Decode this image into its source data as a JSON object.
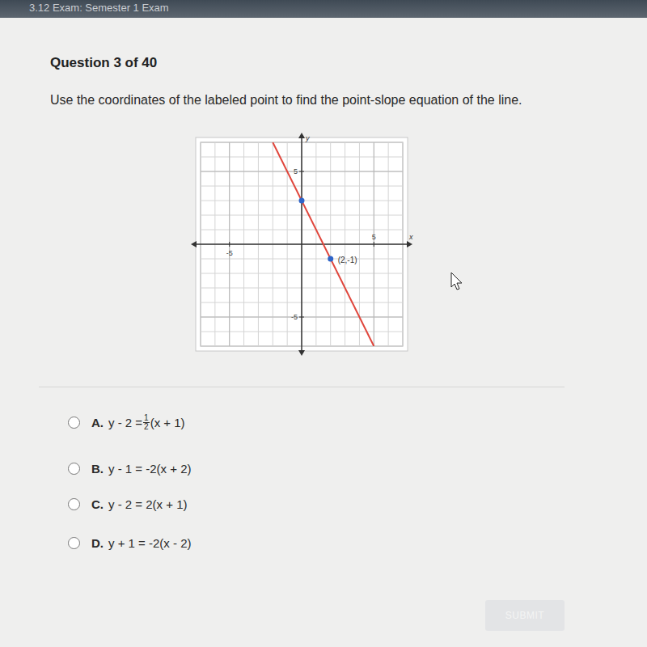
{
  "header": {
    "title": "3.12 Exam: Semester 1 Exam"
  },
  "question": {
    "title": "Question 3 of 40",
    "prompt": "Use the coordinates of the labeled point to find the point-slope equation of the line."
  },
  "chart_data": {
    "type": "line",
    "x_label": "x",
    "y_label": "y",
    "xlim": [
      -7,
      7
    ],
    "ylim": [
      -7,
      7
    ],
    "xticks": [
      -5,
      5
    ],
    "yticks": [
      -5,
      5
    ],
    "grid": true,
    "series": [
      {
        "type": "line",
        "color": "#e0463c",
        "x": [
          -2,
          5
        ],
        "values": [
          7,
          -7
        ]
      },
      {
        "type": "scatter",
        "color": "#2f64c8",
        "marker": "circle",
        "x": [
          0,
          2
        ],
        "values": [
          3,
          -1
        ]
      }
    ],
    "annotations": [
      {
        "text": "(2,-1)",
        "x": 2,
        "y": -1
      }
    ]
  },
  "options": [
    {
      "letter": "A.",
      "before": "y - 2 = ",
      "numerator": "1",
      "denominator": "2",
      "after": "(x + 1)"
    },
    {
      "letter": "B.",
      "before": "y - 1 = -2(x + 2)"
    },
    {
      "letter": "C.",
      "before": "y - 2 = 2(x + 1)"
    },
    {
      "letter": "D.",
      "before": "y + 1 = -2(x - 2)"
    }
  ],
  "submit": "SUBMIT"
}
